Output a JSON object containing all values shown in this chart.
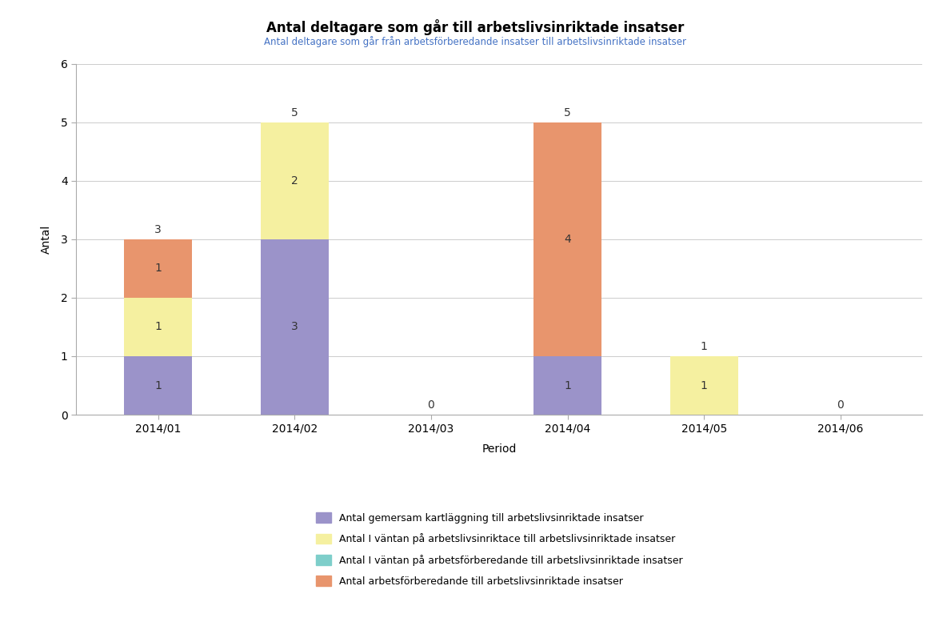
{
  "title": "Antal deltagare som går till arbetslivsinriktade insatser",
  "subtitle": "Antal deltagare som går från arbetsförberedande insatser till arbetslivsinriktade insatser",
  "xlabel": "Period",
  "ylabel": "Antal",
  "categories": [
    "2014/01",
    "2014/02",
    "2014/03",
    "2014/04",
    "2014/05",
    "2014/06"
  ],
  "series": [
    {
      "label": "Antal gemersam kartläggning till arbetslivsinriktade insatser",
      "color": "#9b93c9",
      "values": [
        1,
        3,
        0,
        1,
        0,
        0
      ]
    },
    {
      "label": "Antal I väntan på arbetslivsinriktace till arbetslivsinriktade insatser",
      "color": "#f5f0a0",
      "values": [
        1,
        2,
        0,
        0,
        1,
        0
      ]
    },
    {
      "label": "Antal I väntan på arbetsförberedande till arbetslivsinriktade insatser",
      "color": "#7ececa",
      "values": [
        0,
        0,
        0,
        0,
        0,
        0
      ]
    },
    {
      "label": "Antal arbetsförberedande till arbetslivsinriktade insatser",
      "color": "#e8956d",
      "values": [
        1,
        0,
        0,
        4,
        0,
        0
      ]
    }
  ],
  "totals": [
    3,
    5,
    0,
    5,
    1,
    0
  ],
  "ylim": [
    0,
    6
  ],
  "yticks": [
    0,
    1,
    2,
    3,
    4,
    5,
    6
  ],
  "background_color": "#ffffff",
  "title_fontsize": 12,
  "subtitle_fontsize": 8.5,
  "subtitle_color": "#4472c4",
  "bar_width": 0.5,
  "figsize": [
    11.89,
    7.97
  ],
  "dpi": 100
}
